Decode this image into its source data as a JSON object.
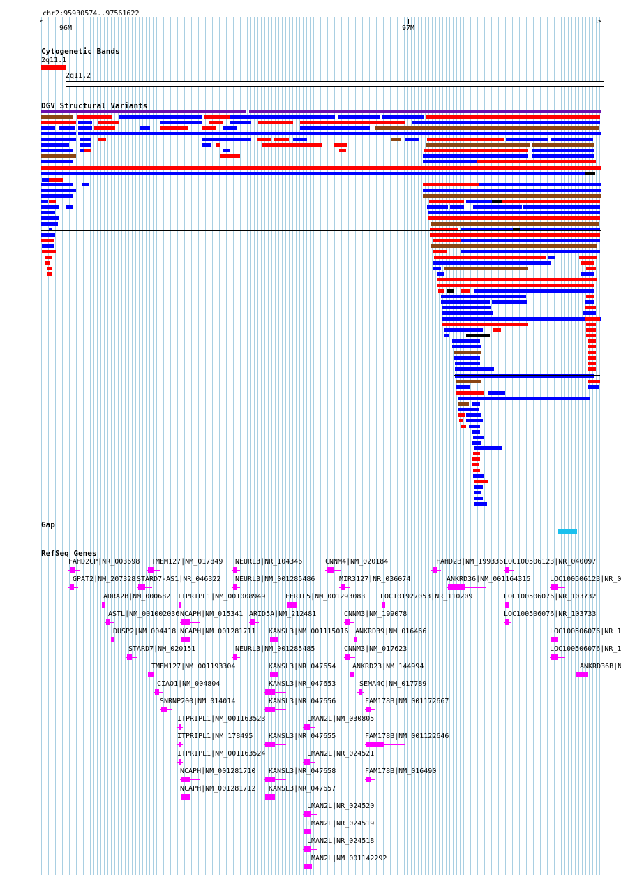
{
  "ruler": {
    "coordinates": "chr2:95930574..97561622",
    "ticks": [
      "96M",
      "97M"
    ]
  },
  "tracks": {
    "cytoband": {
      "title": "Cytogenetic Bands",
      "bands": [
        "2q11.1",
        "2q11.2"
      ]
    },
    "dgv": {
      "title": "DGV Structural Variants",
      "colors": {
        "gain": "#ff0000",
        "loss": "#0000ff",
        "gain_loss": "#8b4513",
        "inversion": "#6a0dad",
        "complex": "#000000"
      }
    },
    "gap": {
      "title": "Gap",
      "color": "#19c0ee"
    },
    "refseq": {
      "title": "RefSeq Genes",
      "color": "#ff00ff",
      "genes": [
        "FAHD2CP|NR_003698",
        "TMEM127|NM_017849",
        "NEURL3|NR_104346",
        "CNNM4|NM_020184",
        "FAHD2B|NM_199336",
        "LOC100506123|NR_040097",
        "GPAT2|NM_207328",
        "STARD7-AS1|NR_046322",
        "NEURL3|NM_001285486",
        "MIR3127|NR_036074",
        "ANKRD36|NM_001164315",
        "LOC100506123|NR_0",
        "ADRA2B|NM_000682",
        "ITPRIPL1|NM_001008949",
        "FER1L5|NM_001293083",
        "LOC101927053|NR_110209",
        "LOC100506076|NR_103732",
        "ASTL|NM_001002036",
        "NCAPH|NM_015341",
        "ARID5A|NM_212481",
        "CNNM3|NM_199078",
        "LOC100506076|NR_103733",
        "DUSP2|NM_004418",
        "NCAPH|NM_001281711",
        "KANSL3|NM_001115016",
        "ANKRD39|NM_016466",
        "LOC100506076|NR_1",
        "STARD7|NM_020151",
        "NEURL3|NM_001285485",
        "CNNM3|NM_017623",
        "LOC100506076|NR_1",
        "TMEM127|NM_001193304",
        "KANSL3|NR_047654",
        "ANKRD23|NM_144994",
        "ANKRD36B|N",
        "CIAO1|NM_004804",
        "KANSL3|NR_047653",
        "SEMA4C|NM_017789",
        "SNRNP200|NM_014014",
        "KANSL3|NR_047656",
        "FAM178B|NM_001172667",
        "ITPRIPL1|NM_001163523",
        "LMAN2L|NM_030805",
        "ITPRIPL1|NM_178495",
        "KANSL3|NR_047655",
        "FAM178B|NM_001122646",
        "ITPRIPL1|NM_001163524",
        "LMAN2L|NR_024521",
        "NCAPH|NM_001281710",
        "KANSL3|NR_047658",
        "FAM178B|NM_016490",
        "NCAPH|NM_001281712",
        "KANSL3|NR_047657",
        "LMAN2L|NR_024520",
        "LMAN2L|NR_024519",
        "LMAN2L|NR_024518",
        "LMAN2L|NM_001142292"
      ]
    }
  }
}
